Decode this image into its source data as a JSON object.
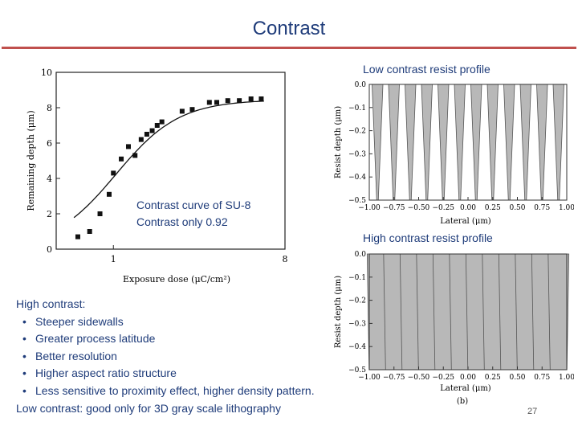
{
  "title": "Contrast",
  "left_chart": {
    "ylabel": "Remaining depth (μm)",
    "xlabel": "Exposure dose (μC/cm²)",
    "yticks": [
      "0",
      "2",
      "4",
      "6",
      "8",
      "10"
    ],
    "xticks": [
      "1",
      "8"
    ],
    "caption_line1": "Contrast curve of SU-8",
    "caption_line2": "Contrast only 0.92"
  },
  "low_profile": {
    "caption": "Low contrast resist profile",
    "ylabel": "Resist depth (μm)",
    "xlabel": "Lateral (μm)",
    "yticks": [
      "0.0",
      "−0.1",
      "−0.2",
      "−0.3",
      "−0.4",
      "−0.5"
    ],
    "xticks": [
      "−1.00",
      "−0.75",
      "−0.50",
      "−0.25",
      "0.00",
      "0.25",
      "0.50",
      "0.75",
      "1.00"
    ]
  },
  "high_profile": {
    "caption": "High contrast resist profile",
    "ylabel": "Resist depth (μm)",
    "xlabel": "Lateral (μm)",
    "panel_label": "(b)",
    "yticks": [
      "0.0",
      "−0.1",
      "−0.2",
      "−0.3",
      "−0.4",
      "−0.5"
    ],
    "xticks": [
      "−1.00",
      "−0.75",
      "−0.50",
      "−0.25",
      "0.00",
      "0.25",
      "0.50",
      "0.75",
      "1.00"
    ]
  },
  "text": {
    "high_heading": "High contrast:",
    "bullets": [
      "Steeper sidewalls",
      "Greater process latitude",
      "Better resolution",
      "Higher aspect ratio structure",
      "Less sensitive to proximity effect, higher density pattern."
    ],
    "low_prefix": "Low contrast",
    "low_suffix": ": good only for 3D gray scale lithography"
  },
  "page_number": "27",
  "colors": {
    "title": "#1f3c7a",
    "rule": "#c0504d",
    "text": "#1f3c7a"
  },
  "chart_data": [
    {
      "type": "scatter",
      "xlabel": "Exposure dose (μC/cm²)",
      "ylabel": "Remaining depth (μm)",
      "xscale": "log",
      "xlim": [
        0.5,
        8
      ],
      "ylim": [
        0,
        10
      ],
      "series": [
        {
          "x": [
            0.65,
            0.75,
            0.85,
            0.95,
            1.0,
            1.1,
            1.2,
            1.3,
            1.4,
            1.5,
            1.6,
            1.7,
            1.8,
            2.3,
            2.6,
            3.2,
            3.5,
            4.0,
            4.6,
            5.3,
            6.0
          ],
          "y": [
            0.7,
            1.0,
            2.0,
            3.1,
            4.3,
            5.1,
            5.8,
            5.3,
            6.2,
            6.5,
            6.7,
            7.0,
            7.2,
            7.8,
            7.9,
            8.3,
            8.3,
            8.4,
            8.4,
            8.5,
            8.5
          ]
        }
      ]
    },
    {
      "type": "area",
      "xlabel": "Lateral (μm)",
      "ylabel": "Resist depth (μm)",
      "xlim": [
        -1,
        1
      ],
      "ylim": [
        -0.5,
        0
      ],
      "profile": "low contrast"
    },
    {
      "type": "area",
      "xlabel": "Lateral (μm)",
      "ylabel": "Resist depth (μm)",
      "xlim": [
        -1,
        1
      ],
      "ylim": [
        -0.5,
        0
      ],
      "profile": "high contrast"
    }
  ]
}
